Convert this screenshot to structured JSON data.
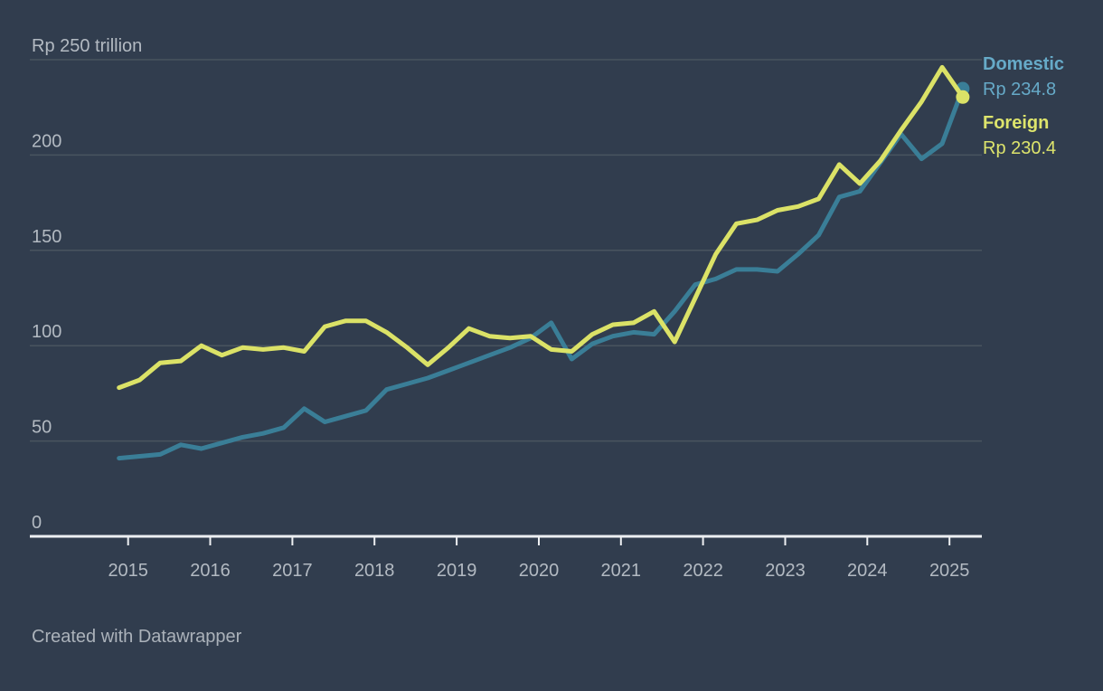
{
  "background": "#313D4E",
  "footer": "Created with Datawrapper",
  "legend": {
    "domestic_label": "Domestic",
    "domestic_value": "Rp 234.8",
    "foreign_label": "Foreign",
    "foreign_value": "Rp 230.4"
  },
  "colors": {
    "background": "#313D4E",
    "grid": "#49545F",
    "axis": "#EDEFF2",
    "label": "#B3BAC2",
    "footer_text": "#ABB2BA",
    "domestic_line": "#3A7E97",
    "domestic_text": "#66AAC8",
    "foreign_line": "#DBE267",
    "foreign_text": "#DDE46C"
  },
  "chart_data": {
    "type": "line",
    "title": "Rp 250 trillion",
    "x_unit": "quarter",
    "x": [
      "2014 Q4",
      "2015 Q1",
      "2015 Q2",
      "2015 Q3",
      "2015 Q4",
      "2016 Q1",
      "2016 Q2",
      "2016 Q3",
      "2016 Q4",
      "2017 Q1",
      "2017 Q2",
      "2017 Q3",
      "2017 Q4",
      "2018 Q1",
      "2018 Q2",
      "2018 Q3",
      "2018 Q4",
      "2019 Q1",
      "2019 Q2",
      "2019 Q3",
      "2019 Q4",
      "2020 Q1",
      "2020 Q2",
      "2020 Q3",
      "2020 Q4",
      "2021 Q1",
      "2021 Q2",
      "2021 Q3",
      "2021 Q4",
      "2022 Q1",
      "2022 Q2",
      "2022 Q3",
      "2022 Q4",
      "2023 Q1",
      "2023 Q2",
      "2023 Q3",
      "2023 Q4",
      "2024 Q1",
      "2024 Q2",
      "2024 Q3",
      "2024 Q4",
      "2025 Q1"
    ],
    "series": [
      {
        "name": "Domestic",
        "color": "#3A7E97",
        "final_label": "Rp 234.8",
        "values": [
          41,
          42,
          43,
          48,
          46,
          49,
          52,
          54,
          57,
          67,
          60,
          63,
          66,
          77,
          80,
          83,
          87,
          91,
          95,
          99,
          104,
          112,
          93,
          101,
          105,
          107,
          106,
          118,
          132,
          135,
          140,
          140,
          139,
          148,
          158,
          178,
          181,
          196,
          211,
          198,
          206,
          234.8
        ]
      },
      {
        "name": "Foreign",
        "color": "#DBE267",
        "final_label": "Rp 230.4",
        "values": [
          78,
          82,
          91,
          92,
          100,
          95,
          99,
          98,
          99,
          97,
          110,
          113,
          113,
          107,
          99,
          90,
          99,
          109,
          105,
          104,
          105,
          98,
          97,
          106,
          111,
          112,
          118,
          102,
          125,
          148,
          164,
          166,
          171,
          173,
          177,
          195,
          185,
          197,
          213,
          228,
          246,
          230.4
        ]
      }
    ],
    "ylim": [
      0,
      250
    ],
    "yticks": [
      {
        "v": 0,
        "label": "0"
      },
      {
        "v": 50,
        "label": "50"
      },
      {
        "v": 100,
        "label": "100"
      },
      {
        "v": 150,
        "label": "150"
      },
      {
        "v": 200,
        "label": "200"
      },
      {
        "v": 250,
        "label": "Rp 250 trillion"
      }
    ],
    "xticks": [
      2015,
      2016,
      2017,
      2018,
      2019,
      2020,
      2021,
      2022,
      2023,
      2024,
      2025
    ],
    "grid": "horizontal",
    "legend_position": "right",
    "currency": "Rp",
    "unit": "trillion"
  }
}
